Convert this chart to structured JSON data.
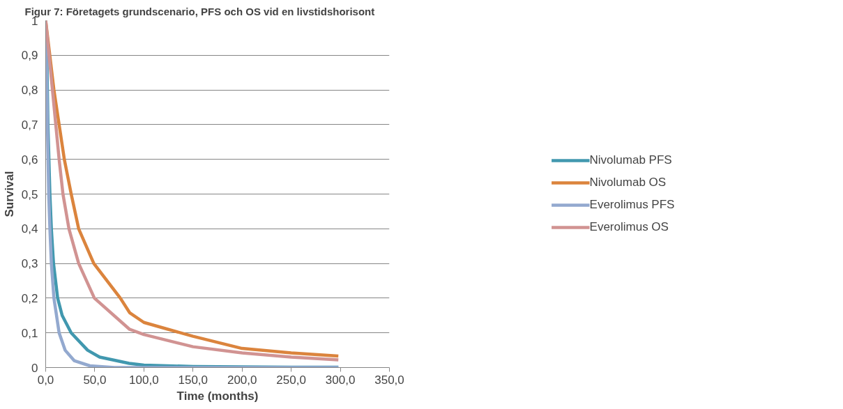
{
  "chart_data": {
    "type": "line",
    "title": "Figur 7: Företagets grundscenario, PFS och OS vid en livstidshorisont",
    "xlabel": "Time (months)",
    "ylabel": "Survival",
    "xlim": [
      0,
      350
    ],
    "xticks": [
      {
        "value": 0,
        "label": "0,0"
      },
      {
        "value": 50,
        "label": "50,0"
      },
      {
        "value": 100,
        "label": "100,0"
      },
      {
        "value": 150,
        "label": "150,0"
      },
      {
        "value": 200,
        "label": "200,0"
      },
      {
        "value": 250,
        "label": "250,0"
      },
      {
        "value": 300,
        "label": "300,0"
      },
      {
        "value": 350,
        "label": "350,0"
      }
    ],
    "ylim": [
      0,
      1
    ],
    "yticks": [
      0,
      {
        "value": 0.1,
        "label": "0,1"
      },
      {
        "value": 0.2,
        "label": "0,2"
      },
      {
        "value": 0.3,
        "label": "0,3"
      },
      {
        "value": 0.4,
        "label": "0,4"
      },
      {
        "value": 0.5,
        "label": "0,5"
      },
      {
        "value": 0.6,
        "label": "0,6"
      },
      {
        "value": 0.7,
        "label": "0,7"
      },
      {
        "value": 0.8,
        "label": "0,8"
      },
      {
        "value": 0.9,
        "label": "0,9"
      },
      1
    ],
    "grid": "y",
    "legend": "right",
    "marker": "none",
    "line_style": "solid",
    "series": [
      {
        "name": "Nivolumab PFS",
        "color": "#4198af",
        "x": [
          0,
          1.2,
          2.3,
          4.3,
          5.8,
          8,
          12.2,
          16.8,
          26,
          42.7,
          55,
          85,
          100,
          150,
          200,
          250,
          298
        ],
        "values": [
          1,
          0.9,
          0.7,
          0.5,
          0.4,
          0.3,
          0.2,
          0.15,
          0.1,
          0.05,
          0.03,
          0.012,
          0.007,
          0.003,
          0.002,
          0.001,
          0.001
        ]
      },
      {
        "name": "Nivolumab OS",
        "color": "#db843d",
        "x": [
          0,
          8.4,
          19,
          26,
          33.6,
          49,
          76,
          85.5,
          100,
          150,
          200,
          250,
          298
        ],
        "values": [
          1,
          0.8,
          0.6,
          0.5,
          0.4,
          0.3,
          0.2,
          0.158,
          0.13,
          0.09,
          0.055,
          0.042,
          0.033
        ]
      },
      {
        "name": "Everolimus PFS",
        "color": "#93a9cf",
        "x": [
          0,
          1.8,
          3.1,
          4.3,
          5.8,
          8.4,
          13.7,
          19.8,
          29,
          45,
          70,
          150,
          298
        ],
        "values": [
          1,
          0.7,
          0.5,
          0.4,
          0.3,
          0.2,
          0.1,
          0.05,
          0.02,
          0.005,
          0,
          0,
          0
        ]
      },
      {
        "name": "Everolimus OS",
        "color": "#d19392",
        "x": [
          0,
          6.9,
          13.7,
          17.6,
          23.7,
          33.6,
          49.6,
          85.5,
          100,
          150,
          200,
          250,
          298
        ],
        "values": [
          1,
          0.8,
          0.6,
          0.5,
          0.4,
          0.3,
          0.2,
          0.11,
          0.095,
          0.06,
          0.042,
          0.03,
          0.022
        ]
      }
    ]
  }
}
